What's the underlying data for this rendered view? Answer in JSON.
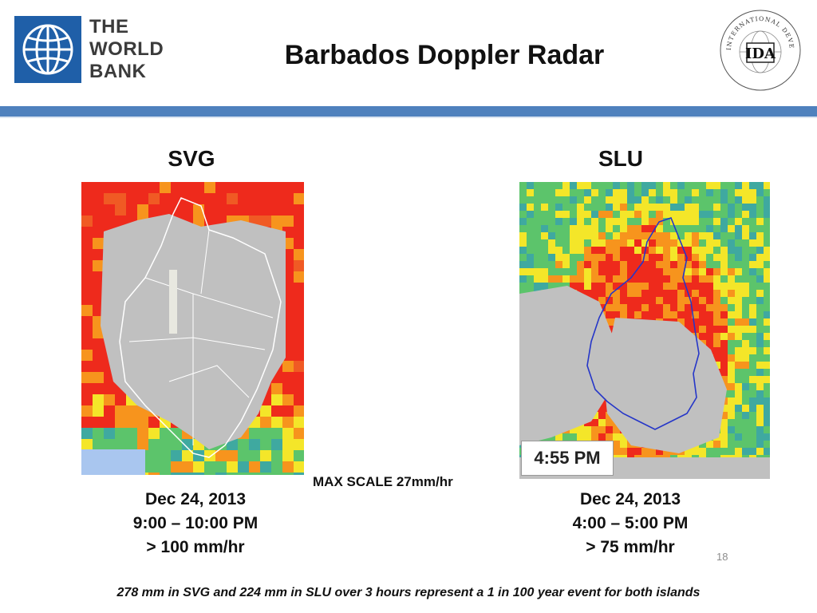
{
  "header": {
    "org_logo_text": "THE WORLD BANK",
    "title": "Barbados Doppler Radar",
    "ida_seal_text": "INTERNATIONAL DEVELOPMENT ASSOCIATION",
    "ida_monogram": "IDA"
  },
  "panels": [
    {
      "label": "SVG",
      "caption_lines": [
        "Dec 24, 2013",
        "9:00 – 10:00 PM",
        "> 100 mm/hr"
      ]
    },
    {
      "label": "SLU",
      "time_stamp": "4:55 PM",
      "caption_lines": [
        "Dec 24, 2013",
        "4:00 – 5:00 PM",
        "> 75 mm/hr"
      ]
    }
  ],
  "max_scale": "MAX SCALE 27mm/hr",
  "page_number": "18",
  "footnote": "278 mm in SVG and 224 mm in SLU over 3 hours represent  a 1 in 100 year event for both islands",
  "colors": {
    "brand_blue": "#1f5fa8",
    "header_bar": "#4f81bd",
    "land_gray": "#c0c0c0",
    "rain_red": "#ee2a1c",
    "rain_orange": "#f7941d",
    "rain_yellow": "#f4e629",
    "rain_green": "#5cc46b",
    "rain_teal": "#3fa9a0"
  }
}
